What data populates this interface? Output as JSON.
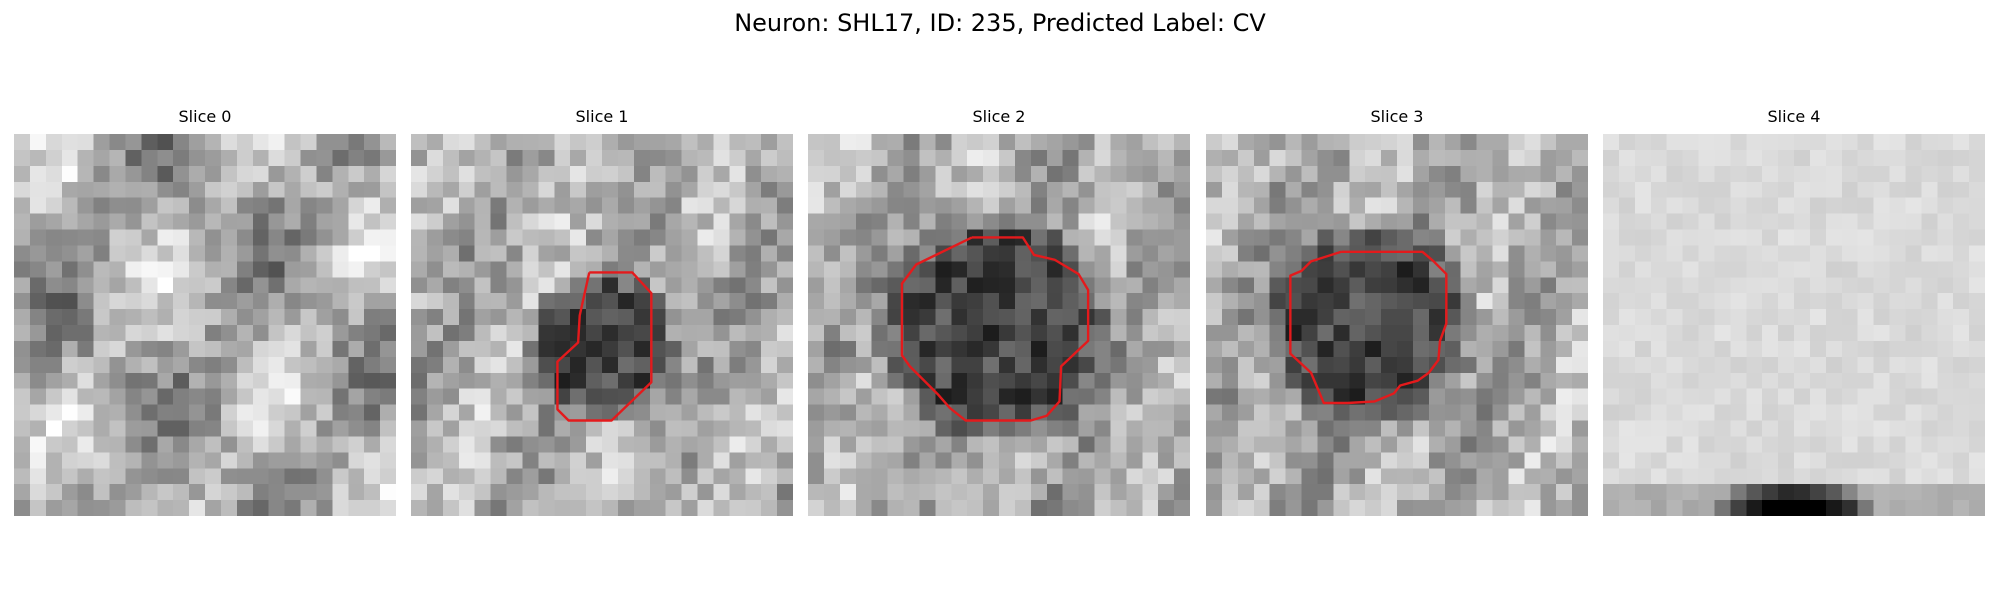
{
  "figure": {
    "title": "Neuron: SHL17, ID: 235, Predicted Label: CV"
  },
  "slices": [
    {
      "title": "Slice 0",
      "style": "textured",
      "outline": []
    },
    {
      "title": "Slice 1",
      "style": "blob-small",
      "outline": [
        [
          11.2,
          8.7
        ],
        [
          13.9,
          8.7
        ],
        [
          15.1,
          10.0
        ],
        [
          15.1,
          15.6
        ],
        [
          12.6,
          18.0
        ],
        [
          9.9,
          18.0
        ],
        [
          9.2,
          17.3
        ],
        [
          9.2,
          14.3
        ],
        [
          10.5,
          13.1
        ],
        [
          10.6,
          11.4
        ],
        [
          11.2,
          8.7
        ]
      ]
    },
    {
      "title": "Slice 2",
      "style": "blob-medium",
      "outline": [
        [
          10.3,
          6.5
        ],
        [
          13.5,
          6.5
        ],
        [
          14.2,
          7.6
        ],
        [
          15.5,
          7.9
        ],
        [
          17.0,
          8.8
        ],
        [
          17.6,
          9.8
        ],
        [
          17.6,
          13.0
        ],
        [
          15.9,
          14.6
        ],
        [
          15.8,
          16.8
        ],
        [
          15.0,
          17.7
        ],
        [
          14.0,
          18.0
        ],
        [
          9.9,
          18.0
        ],
        [
          8.9,
          17.2
        ],
        [
          8.2,
          16.4
        ],
        [
          6.4,
          14.6
        ],
        [
          5.9,
          13.9
        ],
        [
          5.9,
          9.4
        ],
        [
          6.8,
          8.2
        ],
        [
          10.3,
          6.5
        ]
      ]
    },
    {
      "title": "Slice 3",
      "style": "blob-large",
      "outline": [
        [
          8.5,
          7.4
        ],
        [
          11.5,
          7.4
        ],
        [
          13.6,
          7.4
        ],
        [
          14.3,
          8.0
        ],
        [
          15.1,
          8.8
        ],
        [
          15.1,
          11.9
        ],
        [
          14.7,
          13.0
        ],
        [
          14.6,
          14.2
        ],
        [
          14.0,
          15.0
        ],
        [
          13.3,
          15.5
        ],
        [
          12.2,
          15.8
        ],
        [
          11.8,
          16.3
        ],
        [
          10.6,
          16.8
        ],
        [
          8.9,
          16.9
        ],
        [
          7.4,
          16.9
        ],
        [
          6.6,
          15.0
        ],
        [
          5.3,
          13.8
        ],
        [
          5.3,
          8.9
        ],
        [
          6.0,
          8.6
        ],
        [
          6.6,
          8.0
        ],
        [
          8.5,
          7.4
        ]
      ]
    },
    {
      "title": "Slice 4",
      "style": "bright-bottom-shadow",
      "outline": []
    }
  ],
  "outline_color": "#e41a1c"
}
